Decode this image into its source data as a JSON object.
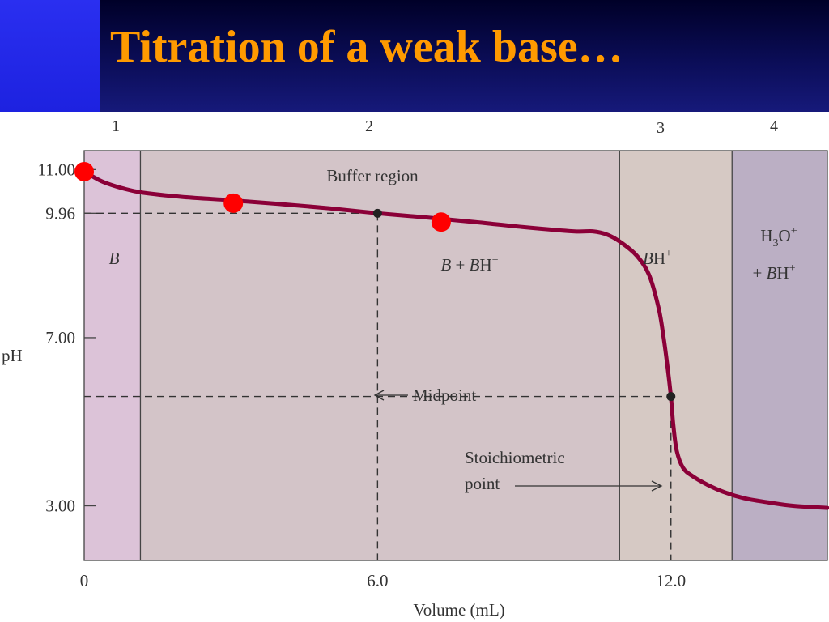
{
  "slide": {
    "title": "Titration of a weak base…"
  },
  "colors": {
    "header_bg": "#0b0d57",
    "accent_bar": "#1d22e0",
    "title": "#ff9a00",
    "curve": "#8b0038",
    "marker": "#ff0000",
    "region_1": "#dcc3d8",
    "region_2": "#d3c4c8",
    "region_3": "#d6c9c4",
    "region_4": "#bbafc4"
  },
  "chart_data": {
    "type": "line",
    "title": "",
    "xlabel": "Volume (mL)",
    "ylabel": "pH",
    "xlim": [
      0,
      15.2
    ],
    "ylim": [
      1.7,
      11.45
    ],
    "x_ticks": [
      {
        "value": 0,
        "label": "0"
      },
      {
        "value": 6.0,
        "label": "6.0"
      },
      {
        "value": 12.0,
        "label": "12.0"
      }
    ],
    "y_ticks": [
      {
        "value": 11.0,
        "label": "11.00"
      },
      {
        "value": 9.96,
        "label": "9.96"
      },
      {
        "value": 7.0,
        "label": "7.00"
      },
      {
        "value": 3.0,
        "label": "3.00"
      }
    ],
    "regions": [
      {
        "number": "1",
        "x_from": 0,
        "x_to": 1.15,
        "label": "B",
        "color": "#dcc3d8"
      },
      {
        "number": "2",
        "x_from": 1.15,
        "x_to": 10.95,
        "label": "B + BH+",
        "color": "#d3c4c8"
      },
      {
        "number": "3",
        "x_from": 10.95,
        "x_to": 13.25,
        "label": "BH+",
        "color": "#d6c9c4"
      },
      {
        "number": "4",
        "x_from": 13.25,
        "x_to": 15.2,
        "label": "H3O+ + BH+",
        "color": "#bbafc4"
      }
    ],
    "region_captions": {
      "buffer": "Buffer region",
      "r1_label": "B",
      "r2_b": "B",
      "r2_plus": " + ",
      "r2_bh": "B",
      "r2_h": "H",
      "r2_sup": "+",
      "r3_b": "B",
      "r3_h": "H",
      "r3_sup": "+",
      "r4_h": "H",
      "r4_sub": "3",
      "r4_o": "O",
      "r4_sup1": "+",
      "r4_plus": "+ ",
      "r4_b": "B",
      "r4_h2": "H",
      "r4_sup2": "+"
    },
    "series": [
      {
        "x": [
          0,
          0.15,
          0.4,
          0.8,
          1.2,
          2.0,
          3.0,
          4.0,
          5.0,
          6.0,
          7.0,
          8.0,
          9.0,
          10.0,
          10.4,
          10.7,
          11.0,
          11.3,
          11.55,
          11.75,
          11.85,
          11.92,
          12.0,
          12.05,
          12.12,
          12.25,
          12.45,
          12.75,
          13.1,
          13.5,
          14.0,
          14.5,
          15.2
        ],
        "y": [
          10.95,
          10.85,
          10.7,
          10.55,
          10.45,
          10.35,
          10.27,
          10.18,
          10.08,
          9.96,
          9.86,
          9.75,
          9.63,
          9.53,
          9.53,
          9.45,
          9.25,
          8.95,
          8.5,
          7.7,
          7.0,
          6.4,
          5.6,
          4.9,
          4.3,
          3.9,
          3.7,
          3.5,
          3.32,
          3.18,
          3.08,
          3.0,
          2.95
        ]
      }
    ],
    "markers": [
      {
        "x": 0,
        "y": 10.95
      },
      {
        "x": 3.05,
        "y": 10.2
      },
      {
        "x": 7.3,
        "y": 9.75
      }
    ],
    "special_points": [
      {
        "name": "Midpoint",
        "x": 6.0,
        "y": 9.96
      },
      {
        "name": "Stoichiometric point",
        "x": 12.0,
        "y": 5.6
      }
    ],
    "annotations": {
      "midpoint": "Midpoint",
      "stoich_line1": "Stoichiometric",
      "stoich_line2": "point"
    }
  }
}
